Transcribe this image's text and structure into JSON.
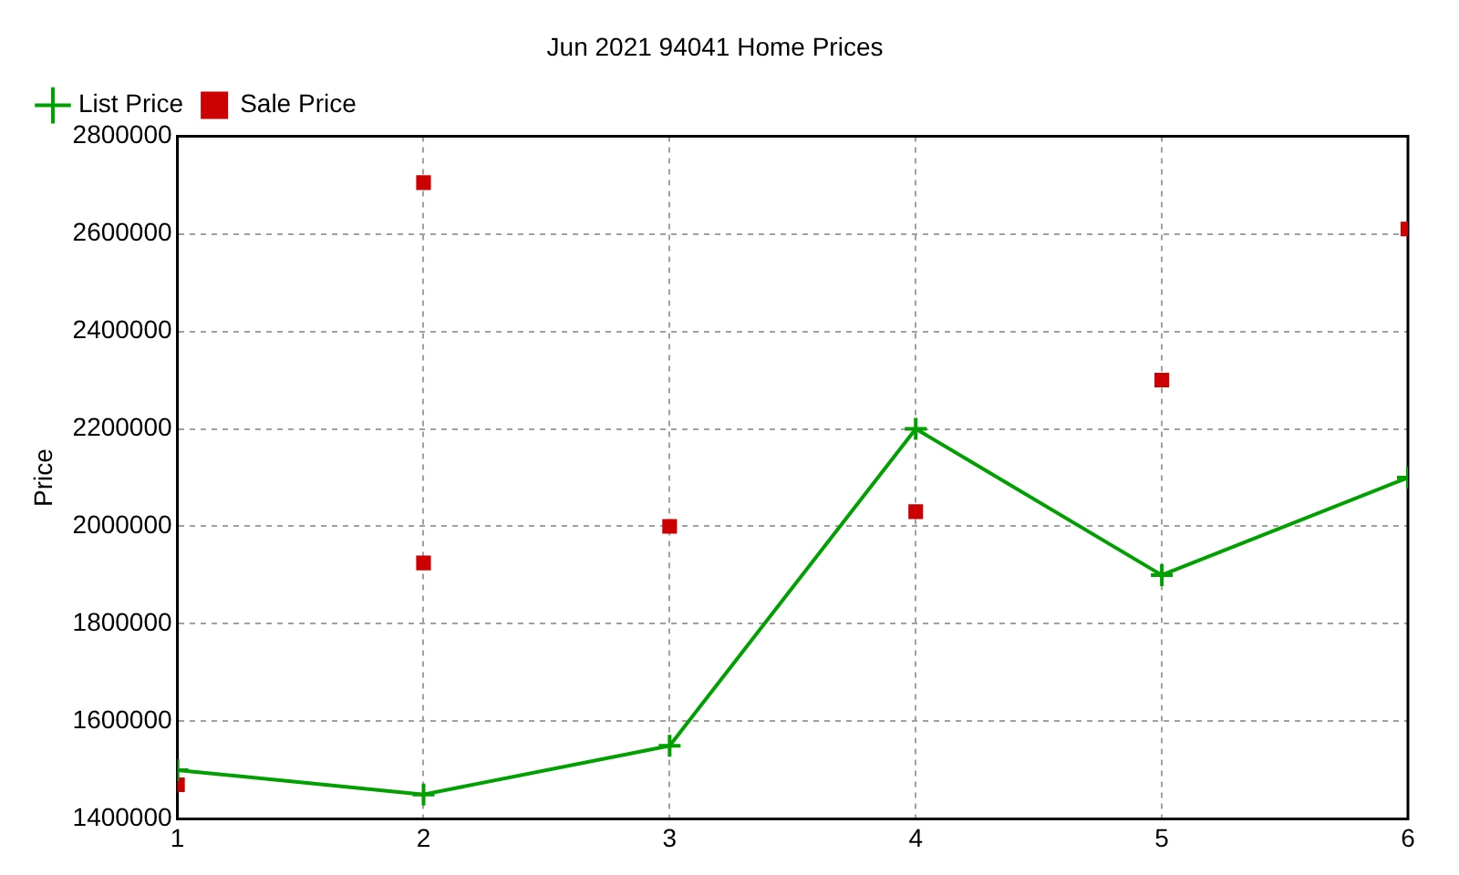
{
  "chart_data": {
    "type": "line",
    "title": "Jun 2021 94041 Home Prices",
    "ylabel": "Price",
    "x": [
      1,
      2,
      3,
      4,
      5,
      6
    ],
    "xlim": [
      1,
      6
    ],
    "xticks": [
      1,
      2,
      3,
      4,
      5,
      6
    ],
    "ylim": [
      1400000,
      2800000
    ],
    "yticks": [
      1400000,
      1600000,
      1800000,
      2000000,
      2200000,
      2400000,
      2600000,
      2800000
    ],
    "grid": true,
    "legend": "top left",
    "series": [
      {
        "name": "List Price",
        "type": "line",
        "color": "#00a000",
        "marker": "cross",
        "values": [
          1500000,
          1450000,
          1550000,
          2200000,
          1900000,
          2100000
        ]
      },
      {
        "name": "Sale Price",
        "type": "scatter",
        "color": "#cc0000",
        "marker": "square",
        "x": [
          1,
          2,
          2,
          3,
          4,
          5,
          6
        ],
        "values": [
          1470000,
          1925000,
          2705000,
          2000000,
          2030000,
          2300000,
          2610000
        ]
      }
    ]
  }
}
